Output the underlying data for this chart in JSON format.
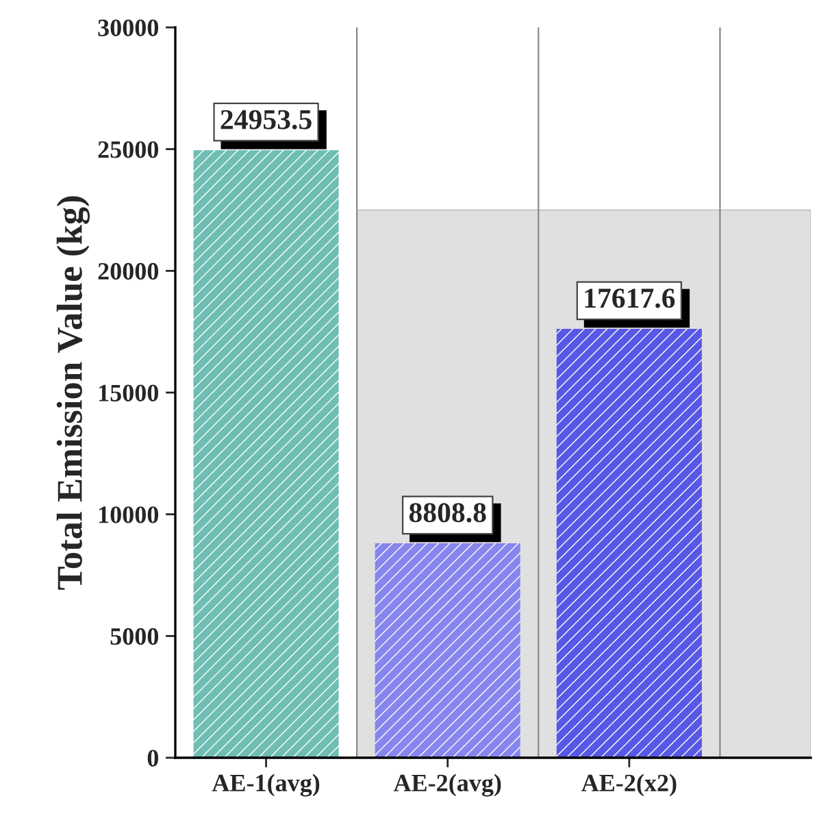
{
  "chart_data": {
    "type": "bar",
    "ylabel": "Total Emission Value (kg)",
    "categories": [
      "AE-1(avg)",
      "AE-2(avg)",
      "AE-2(x2)"
    ],
    "values": [
      24953.5,
      8808.8,
      17617.6
    ],
    "colors": [
      "#6fbdb3",
      "#8686ee",
      "#5858e6"
    ],
    "ylim": [
      0,
      30000
    ],
    "yticks": [
      0,
      5000,
      10000,
      15000,
      20000,
      25000,
      30000
    ],
    "bands": [
      {
        "axis": "y",
        "from": 0,
        "to": 22500,
        "color": "#e0e0e0"
      }
    ],
    "data_labels": true,
    "grid": "x"
  }
}
